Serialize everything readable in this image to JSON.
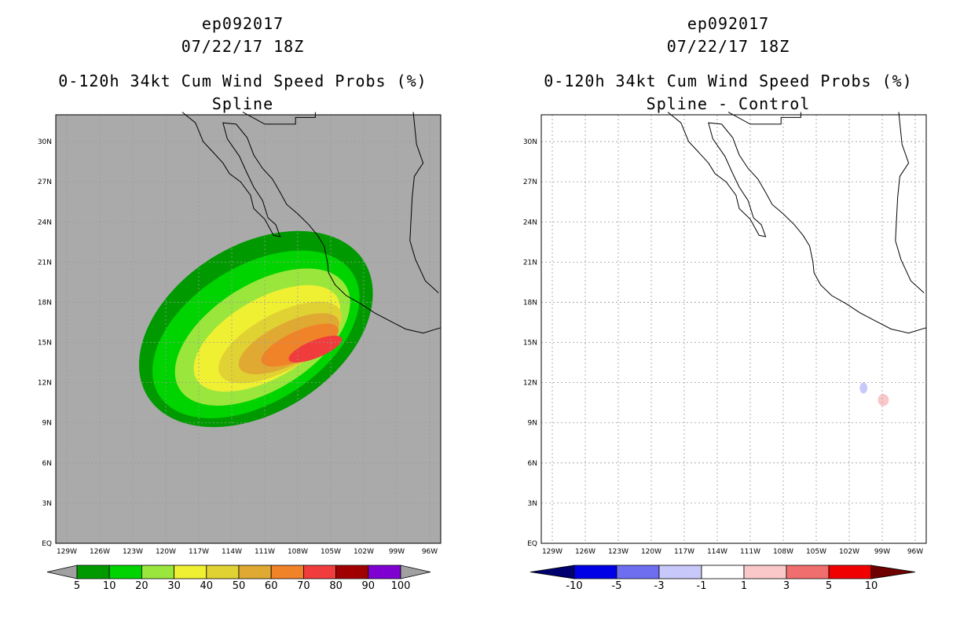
{
  "chart_data": [
    {
      "type": "heatmap",
      "panel": "left",
      "title_lines": [
        "ep092017",
        "07/22/17 18Z",
        "0-120h 34kt Cum Wind Speed Probs (%)",
        "Spline"
      ],
      "xlim": [
        -130,
        -95
      ],
      "ylim": [
        0,
        32
      ],
      "xticks": [
        "129W",
        "126W",
        "123W",
        "120W",
        "117W",
        "114W",
        "111W",
        "108W",
        "105W",
        "102W",
        "99W",
        "96W"
      ],
      "xtick_values": [
        -129,
        -126,
        -123,
        -120,
        -117,
        -114,
        -111,
        -108,
        -105,
        -102,
        -99,
        -96
      ],
      "yticks": [
        "EQ",
        "3N",
        "6N",
        "9N",
        "12N",
        "15N",
        "18N",
        "21N",
        "24N",
        "27N",
        "30N"
      ],
      "ytick_values": [
        0,
        3,
        6,
        9,
        12,
        15,
        18,
        21,
        24,
        27,
        30
      ],
      "background_color": "#aaaaaa",
      "grid": true,
      "colorbar": {
        "labels": [
          "5",
          "10",
          "20",
          "30",
          "40",
          "50",
          "60",
          "70",
          "80",
          "90",
          "100"
        ],
        "colors": [
          "#009a00",
          "#00d400",
          "#9ae63c",
          "#f0f032",
          "#e0d232",
          "#e0aa32",
          "#f08228",
          "#f03c3c",
          "#a00000",
          "#8000d2"
        ],
        "extend_colors": [
          "#a0a0a0",
          "#a0a0a0"
        ]
      },
      "contours": [
        {
          "level": 5,
          "color": "#009a00",
          "center": [
            -111.8,
            16.0
          ],
          "rx": 11.6,
          "ry": 7.6,
          "rotation_deg": -32
        },
        {
          "level": 10,
          "color": "#00d400",
          "center": [
            -111.8,
            15.6
          ],
          "rx": 10.4,
          "ry": 6.2,
          "rotation_deg": -32
        },
        {
          "level": 20,
          "color": "#9ae63c",
          "center": [
            -111.2,
            15.4
          ],
          "rx": 8.9,
          "ry": 4.8,
          "rotation_deg": -32
        },
        {
          "level": 30,
          "color": "#f0f032",
          "center": [
            -110.8,
            15.3
          ],
          "rx": 7.4,
          "ry": 3.6,
          "rotation_deg": -30
        },
        {
          "level": 40,
          "color": "#e0d232",
          "center": [
            -109.6,
            15.0
          ],
          "rx": 6.2,
          "ry": 2.6,
          "rotation_deg": -28
        },
        {
          "level": 50,
          "color": "#e0aa32",
          "center": [
            -108.8,
            14.9
          ],
          "rx": 5.0,
          "ry": 1.9,
          "rotation_deg": -26
        },
        {
          "level": 60,
          "color": "#f08228",
          "center": [
            -107.8,
            14.8
          ],
          "rx": 3.8,
          "ry": 1.3,
          "rotation_deg": -24
        },
        {
          "level": 70,
          "color": "#f03c3c",
          "center": [
            -106.4,
            14.5
          ],
          "rx": 2.6,
          "ry": 0.8,
          "rotation_deg": -22
        }
      ]
    },
    {
      "type": "heatmap",
      "panel": "right",
      "title_lines": [
        "ep092017",
        "07/22/17 18Z",
        "0-120h 34kt Cum Wind Speed Probs (%)",
        "Spline - Control"
      ],
      "xlim": [
        -130,
        -95
      ],
      "ylim": [
        0,
        32
      ],
      "xticks": [
        "129W",
        "126W",
        "123W",
        "120W",
        "117W",
        "114W",
        "111W",
        "108W",
        "105W",
        "102W",
        "99W",
        "96W"
      ],
      "xtick_values": [
        -129,
        -126,
        -123,
        -120,
        -117,
        -114,
        -111,
        -108,
        -105,
        -102,
        -99,
        -96
      ],
      "yticks": [
        "EQ",
        "3N",
        "6N",
        "9N",
        "12N",
        "15N",
        "18N",
        "21N",
        "24N",
        "27N",
        "30N"
      ],
      "ytick_values": [
        0,
        3,
        6,
        9,
        12,
        15,
        18,
        21,
        24,
        27,
        30
      ],
      "background_color": "#ffffff",
      "grid": true,
      "colorbar": {
        "labels": [
          "-10",
          "-5",
          "-3",
          "-1",
          "1",
          "3",
          "5",
          "10"
        ],
        "colors": [
          "#0000e6",
          "#6e6ef0",
          "#c8c8fa",
          "#ffffff",
          "#fac8c8",
          "#f06e6e",
          "#f00000"
        ],
        "extend_colors": [
          "#00006e",
          "#6e0000"
        ]
      },
      "contours": [
        {
          "level": -3,
          "color": "#c8c8fa",
          "center": [
            -100.7,
            11.6
          ],
          "rx": 0.35,
          "ry": 0.5,
          "rotation_deg": 0
        },
        {
          "level": 3,
          "color": "#fac8c8",
          "center": [
            -98.9,
            10.7
          ],
          "rx": 0.5,
          "ry": 0.55,
          "rotation_deg": 0
        }
      ]
    }
  ]
}
